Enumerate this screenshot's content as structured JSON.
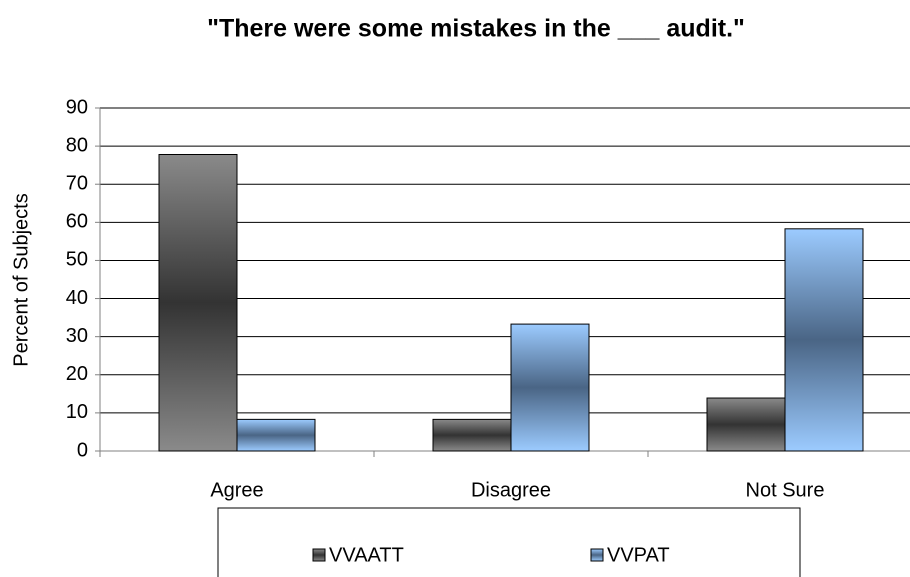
{
  "chart_data": {
    "type": "bar",
    "title": "\"There were some mistakes in the ___ audit.\"",
    "y_label": "Percent of Subjects",
    "categories": [
      "Agree",
      "Disagree",
      "Not Sure"
    ],
    "series": [
      {
        "name": "VVAATT",
        "color": "#333333",
        "values": [
          77.8,
          8.3,
          13.9
        ]
      },
      {
        "name": "VVPAT",
        "color": "#4a6585",
        "values": [
          8.3,
          33.3,
          58.3
        ]
      }
    ],
    "ylim": [
      0,
      90
    ],
    "yticks": [
      0,
      10,
      20,
      30,
      40,
      50,
      60,
      70,
      80,
      90
    ],
    "grid": true
  }
}
